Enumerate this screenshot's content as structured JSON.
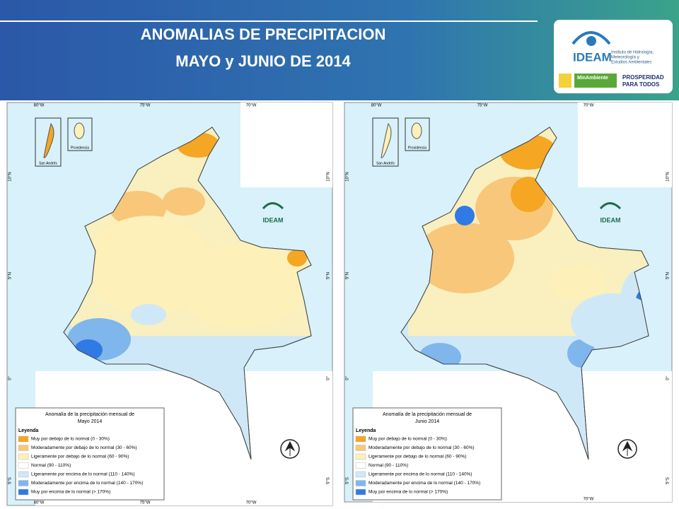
{
  "header": {
    "title_lines": [
      "ANOMALIAS DE PRECIPITACION",
      "MAYO y JUNIO DE 2014"
    ]
  },
  "logo": {
    "name": "IDEAM",
    "institute_lines": [
      "Instituto de Hidrología,",
      "Meteorología y",
      "Estudios Ambientales"
    ],
    "ministry": "MinAmbiente",
    "slogan_lines": [
      "PROSPERIDAD",
      "PARA TODOS"
    ]
  },
  "map_labels": {
    "longitudes": [
      "80°W",
      "75°W",
      "70°W"
    ],
    "latitudes": [
      "10°N",
      "5°N",
      "0°",
      "5°S"
    ],
    "insets": [
      "San Andrés",
      "Providencia"
    ],
    "watermark": "IDEAM"
  },
  "maps": [
    {
      "legend_title_lines": [
        "Anomalía de la precipitación mensual de",
        "Mayo 2014"
      ]
    },
    {
      "legend_title_lines": [
        "Anomalía de la precipitación mensual de",
        "Junio 2014"
      ]
    }
  ],
  "legend": {
    "heading": "Leyenda",
    "items": [
      {
        "label": "Muy por debajo de lo normal (0 - 30%)",
        "color": "#f5a623"
      },
      {
        "label": "Moderadamente por debajo de lo normal (30 - 60%)",
        "color": "#f8c77a"
      },
      {
        "label": "Ligeramente por debajo de lo normal (60 - 90%)",
        "color": "#fdf0b8"
      },
      {
        "label": "Normal (90 - 110%)",
        "color": "#ffffff"
      },
      {
        "label": "Ligeramente por encima de lo normal (110 - 140%)",
        "color": "#cfe8f7"
      },
      {
        "label": "Moderadamente por encima de lo normal (140 - 170%)",
        "color": "#7fb6ec"
      },
      {
        "label": "Muy por encima de lo normal (> 170%)",
        "color": "#2f7ae5"
      }
    ]
  }
}
